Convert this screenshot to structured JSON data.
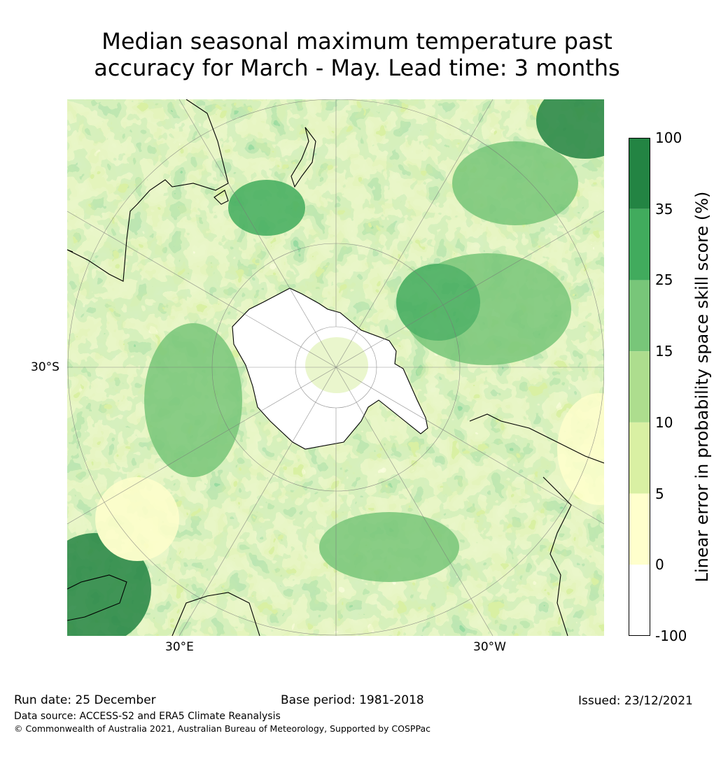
{
  "title": {
    "line1": "Median seasonal maximum temperature past",
    "line2": "accuracy for March - May. Lead time: 3 months"
  },
  "map": {
    "projection": "south-polar stereographic",
    "lat_label": "30°S",
    "lon_labels": [
      "30°E",
      "30°W"
    ]
  },
  "colorbar": {
    "label": "Linear error in probability space skill score (%)",
    "ticks": [
      "100",
      "35",
      "25",
      "15",
      "10",
      "5",
      "0",
      "-100"
    ],
    "bins": [
      {
        "range": "35 to 100",
        "color": "#238443"
      },
      {
        "range": "25 to 35",
        "color": "#41ab5d"
      },
      {
        "range": "15 to 25",
        "color": "#78c679"
      },
      {
        "range": "10 to 15",
        "color": "#addd8e"
      },
      {
        "range": "5 to 10",
        "color": "#d9f0a3"
      },
      {
        "range": "0 to 5",
        "color": "#ffffcc"
      },
      {
        "range": "-100 to 0",
        "color": "#ffffff"
      }
    ]
  },
  "footer": {
    "run_date": "Run date: 25 December",
    "base_period": "Base period: 1981-2018",
    "issued": "Issued: 23/12/2021",
    "data_source": "Data source: ACCESS-S2 and ERA5 Climate Reanalysis",
    "copyright": "© Commonwealth of Australia 2021, Australian Bureau of Meteorology, Supported by COSPPac"
  }
}
